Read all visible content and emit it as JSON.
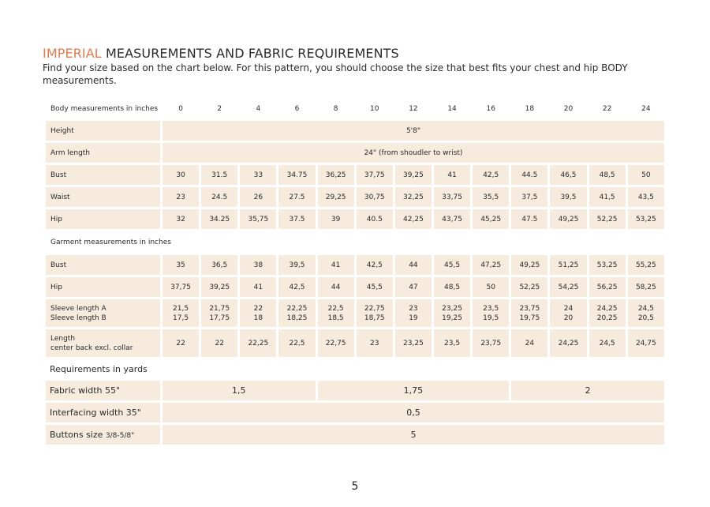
{
  "heading": {
    "accent": "IMPERIAL",
    "rest": " MEASUREMENTS AND FABRIC REQUIREMENTS",
    "intro": "Find your size based on the chart below. For this pattern, you should choose the size that best fits your chest and hip BODY measurements."
  },
  "table": {
    "body_header": "Body measurements in inches",
    "sizes": [
      "0",
      "2",
      "4",
      "6",
      "8",
      "10",
      "12",
      "14",
      "16",
      "18",
      "20",
      "22",
      "24"
    ],
    "height": {
      "label": "Height",
      "value": "5'8\""
    },
    "arm": {
      "label": "Arm length",
      "value": "24\" (from shoudler to wrist)"
    },
    "body_rows": [
      {
        "label": "Bust",
        "values": [
          "30",
          "31.5",
          "33",
          "34.75",
          "36,25",
          "37,75",
          "39,25",
          "41",
          "42,5",
          "44.5",
          "46,5",
          "48,5",
          "50"
        ]
      },
      {
        "label": "Waist",
        "values": [
          "23",
          "24.5",
          "26",
          "27.5",
          "29,25",
          "30,75",
          "32,25",
          "33,75",
          "35,5",
          "37,5",
          "39,5",
          "41,5",
          "43,5"
        ]
      },
      {
        "label": "Hip",
        "values": [
          "32",
          "34.25",
          "35,75",
          "37.5",
          "39",
          "40.5",
          "42,25",
          "43,75",
          "45,25",
          "47.5",
          "49,25",
          "52,25",
          "53,25"
        ]
      }
    ],
    "garment_header": "Garment measurements in inches",
    "garment_rows": [
      {
        "label": "Bust",
        "values": [
          "35",
          "36,5",
          "38",
          "39,5",
          "41",
          "42,5",
          "44",
          "45,5",
          "47,25",
          "49,25",
          "51,25",
          "53,25",
          "55,25"
        ]
      },
      {
        "label": "Hip",
        "values": [
          "37,75",
          "39,25",
          "41",
          "42,5",
          "44",
          "45,5",
          "47",
          "48,5",
          "50",
          "52,25",
          "54,25",
          "56,25",
          "58,25"
        ]
      }
    ],
    "sleeve": {
      "label_a": "Sleeve length  A",
      "label_b": "Sleeve length B",
      "a": [
        "21,5",
        "21,75",
        "22",
        "22,25",
        "22,5",
        "22,75",
        "23",
        "23,25",
        "23,5",
        "23,75",
        "24",
        "24,25",
        "24,5"
      ],
      "b": [
        "17,5",
        "17,75",
        "18",
        "18,25",
        "18,5",
        "18,75",
        "19",
        "19,25",
        "19,5",
        "19,75",
        "20",
        "20,25",
        "20,5"
      ]
    },
    "length": {
      "label_1": "Length",
      "label_2": "center back excl. collar",
      "values": [
        "22",
        "22",
        "22,25",
        "22,5",
        "22,75",
        "23",
        "23,25",
        "23,5",
        "23,75",
        "24",
        "24,25",
        "24,5",
        "24,75"
      ]
    },
    "req_header": "Requirements in yards",
    "fabric": {
      "label": "Fabric width 55\"",
      "v1": "1,5",
      "v2": "1,75",
      "v3": "2"
    },
    "interfacing": {
      "label": "Interfacing width 35\"",
      "value": "0,5"
    },
    "buttons": {
      "label": "Buttons size ",
      "label_small": "3/8-5/8\"",
      "value": "5"
    }
  },
  "page_number": "5"
}
